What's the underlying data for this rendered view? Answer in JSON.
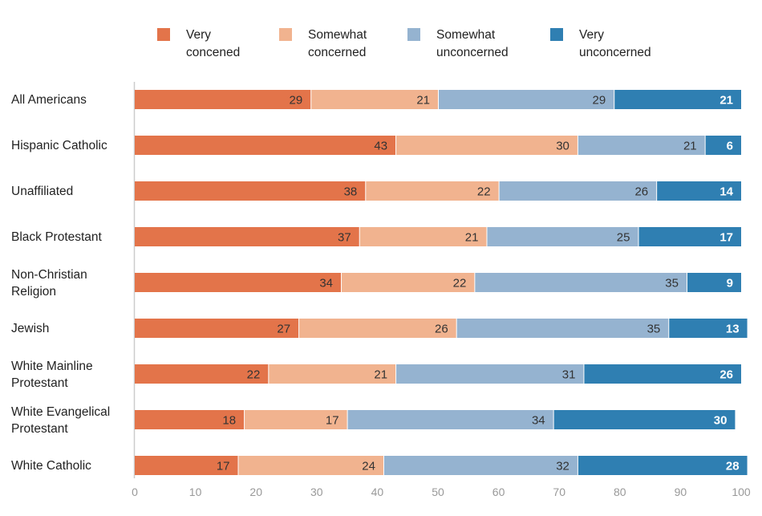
{
  "chart_data": {
    "type": "bar",
    "orientation": "horizontal",
    "stacked": true,
    "categories": [
      [
        "All Americans"
      ],
      [
        "Hispanic Catholic"
      ],
      [
        "Unaffiliated"
      ],
      [
        "Black Protestant"
      ],
      [
        "Non-Christian",
        "Religion"
      ],
      [
        "Jewish"
      ],
      [
        "White Mainline",
        "Protestant"
      ],
      [
        "White Evangelical",
        "Protestant"
      ],
      [
        "White Catholic"
      ]
    ],
    "series": [
      {
        "name": [
          "Very",
          "concened"
        ],
        "color": "#e3744a",
        "label_color": "#333333",
        "values": [
          29,
          43,
          38,
          37,
          34,
          27,
          22,
          18,
          17
        ]
      },
      {
        "name": [
          "Somewhat",
          "concerned"
        ],
        "color": "#f1b38f",
        "label_color": "#333333",
        "values": [
          21,
          30,
          22,
          21,
          22,
          26,
          21,
          17,
          24
        ]
      },
      {
        "name": [
          "Somewhat",
          "unconcerned"
        ],
        "color": "#95b3d0",
        "label_color": "#333333",
        "values": [
          29,
          21,
          26,
          25,
          35,
          35,
          31,
          34,
          32
        ]
      },
      {
        "name": [
          "Very",
          "unconcerned"
        ],
        "color": "#2f7fb2",
        "label_color": "#ffffff",
        "values": [
          21,
          6,
          14,
          17,
          9,
          13,
          26,
          30,
          28
        ]
      }
    ],
    "xlim": [
      0,
      100
    ],
    "xticks": [
      "0",
      "10",
      "20",
      "30",
      "40",
      "50",
      "60",
      "70",
      "80",
      "90",
      "100"
    ],
    "grid": false,
    "legend": "top"
  }
}
